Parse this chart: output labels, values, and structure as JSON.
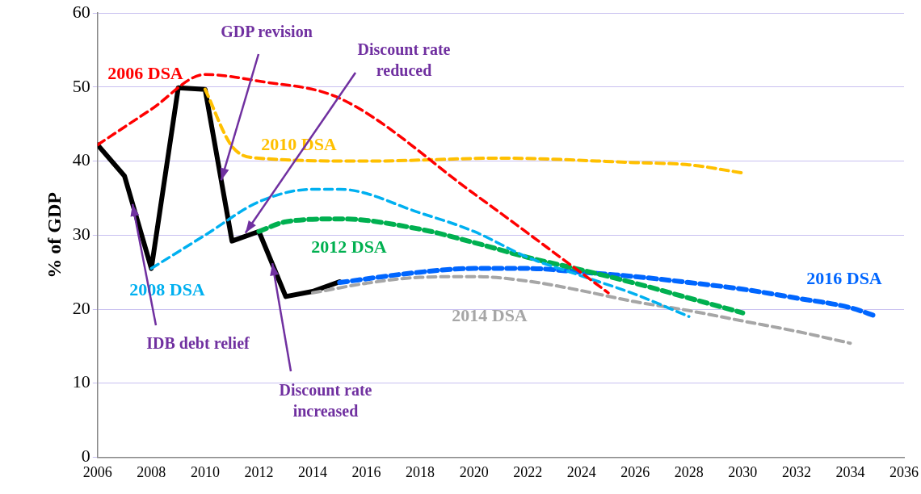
{
  "chart_data": {
    "type": "line",
    "ylabel": "% of GDP",
    "xlim": [
      2006,
      2036
    ],
    "xticks": [
      2006,
      2008,
      2010,
      2012,
      2014,
      2016,
      2018,
      2020,
      2022,
      2024,
      2026,
      2028,
      2030,
      2032,
      2034,
      2036
    ],
    "ylim": [
      0,
      60
    ],
    "yticks": [
      0,
      10,
      20,
      30,
      40,
      50,
      60
    ],
    "grid": "y",
    "legend": false,
    "marker": "none",
    "series": [
      {
        "name": "2006 DSA",
        "color": "#ff0000",
        "line_style": "dashed",
        "x": [
          2006,
          2008,
          2010,
          2012,
          2015,
          2020,
          2025
        ],
        "values": [
          42.2,
          47.0,
          51.7,
          50.8,
          48.5,
          35.6,
          22.2
        ]
      },
      {
        "name": "2008 DSA",
        "color": "#00b0f0",
        "line_style": "dashed",
        "x": [
          2008,
          2010,
          2012,
          2014,
          2015,
          2018,
          2020,
          2022,
          2024,
          2026,
          2028
        ],
        "values": [
          25.5,
          30.0,
          34.5,
          36.2,
          36.2,
          33.0,
          30.5,
          27.0,
          24.5,
          22.0,
          19.0
        ]
      },
      {
        "name": "2010 DSA",
        "color": "#ffc000",
        "line_style": "dashed",
        "x": [
          2010,
          2011,
          2012,
          2016,
          2021,
          2026,
          2028,
          2030
        ],
        "values": [
          49.7,
          42.0,
          40.4,
          40.0,
          40.4,
          39.8,
          39.5,
          38.4
        ]
      },
      {
        "name": "2012 DSA",
        "color": "#00b050",
        "line_style": "dashed",
        "x": [
          2012,
          2013,
          2015,
          2018,
          2020,
          2022,
          2024,
          2026,
          2028,
          2030
        ],
        "values": [
          30.5,
          31.8,
          32.2,
          30.8,
          29.0,
          27.0,
          25.3,
          23.5,
          21.5,
          19.5
        ]
      },
      {
        "name": "2014 DSA",
        "color": "#a6a6a6",
        "line_style": "dashed",
        "x": [
          2014,
          2016,
          2018,
          2020,
          2022,
          2024,
          2026,
          2028,
          2030,
          2032,
          2034
        ],
        "values": [
          22.2,
          23.5,
          24.3,
          24.4,
          23.8,
          22.5,
          21.0,
          19.8,
          18.4,
          17.0,
          15.4
        ]
      },
      {
        "name": "2016 DSA",
        "color": "#0066ff",
        "line_style": "dashed",
        "x": [
          2015,
          2018,
          2020,
          2022,
          2024,
          2026,
          2028,
          2030,
          2032,
          2034,
          2035
        ],
        "values": [
          23.6,
          25.0,
          25.5,
          25.5,
          25.0,
          24.4,
          23.6,
          22.7,
          21.5,
          20.2,
          19.0
        ]
      },
      {
        "color": "#000000",
        "line_style": "solid",
        "x": [
          2006,
          2007,
          2008,
          2009,
          2010,
          2011,
          2012,
          2013,
          2014,
          2015
        ],
        "values": [
          42.2,
          38.0,
          25.5,
          49.9,
          49.7,
          29.2,
          30.5,
          21.7,
          22.4,
          23.7
        ]
      }
    ],
    "annotations": [
      {
        "text": "GDP revision",
        "x": 2010.6,
        "y": 37.4
      },
      {
        "text": "Discount rate reduced",
        "x": 2011.5,
        "y": 30.3
      },
      {
        "text": "IDB debt relief",
        "x": 2007.3,
        "y": 34.2
      },
      {
        "text": "Discount rate increased",
        "x": 2012.5,
        "y": 26.2
      }
    ]
  }
}
